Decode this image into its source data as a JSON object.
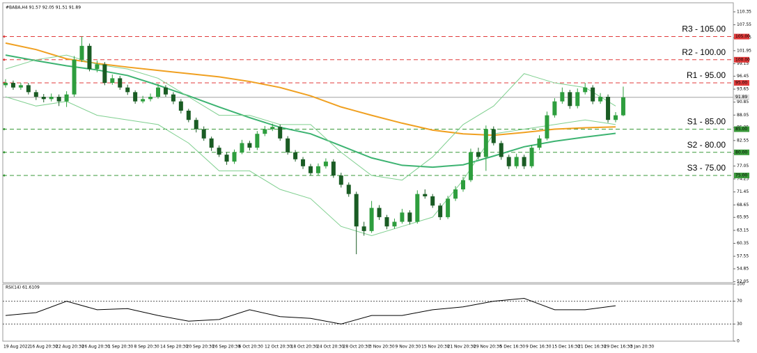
{
  "chart_data": {
    "type": "candlestick",
    "title": "#BABA,H4 91.57 92.05 91.51 91.89",
    "bull_color": "#2e9e3e",
    "bear_color": "#1a5c24",
    "ylim": [
      52,
      111.7
    ],
    "yticks": [
      110.35,
      107.55,
      104.75,
      101.95,
      99.15,
      96.45,
      93.65,
      90.85,
      88.05,
      85.35,
      82.55,
      79.75,
      77.05,
      74.25,
      71.45,
      68.65,
      65.95,
      63.15,
      60.35,
      57.55,
      54.85,
      52.05
    ],
    "candles": [
      [
        94.5,
        95.8,
        94,
        95
      ],
      [
        95,
        95.5,
        93.5,
        94
      ],
      [
        94,
        95,
        93.5,
        94.5
      ],
      [
        94.5,
        95,
        92.5,
        93
      ],
      [
        93,
        93.5,
        91.3,
        92
      ],
      [
        92,
        92.6,
        90.8,
        91.5
      ],
      [
        91.5,
        92.7,
        91,
        92
      ],
      [
        92,
        92.5,
        90,
        91
      ],
      [
        91,
        93.2,
        89.8,
        92.5
      ],
      [
        92.5,
        100.8,
        92,
        100
      ],
      [
        100,
        105,
        99.5,
        103
      ],
      [
        103,
        103.5,
        97.5,
        98
      ],
      [
        98,
        99.8,
        97.3,
        99
      ],
      [
        99,
        99.5,
        94.5,
        95
      ],
      [
        95,
        96.8,
        94.6,
        96
      ],
      [
        96,
        96.5,
        93.5,
        94
      ],
      [
        94,
        94.6,
        92.4,
        93
      ],
      [
        93,
        93.4,
        90.5,
        91
      ],
      [
        91,
        92.2,
        90.6,
        91.5
      ],
      [
        91.5,
        92.7,
        91,
        92
      ],
      [
        92,
        94.8,
        91.6,
        94
      ],
      [
        94,
        94.5,
        92,
        92.5
      ],
      [
        92.5,
        93,
        90.4,
        91
      ],
      [
        91,
        91.5,
        88.4,
        89
      ],
      [
        89,
        89.4,
        86.5,
        87
      ],
      [
        87,
        87.5,
        84.3,
        85
      ],
      [
        85,
        85.6,
        82.5,
        83
      ],
      [
        83,
        83.4,
        80.3,
        81
      ],
      [
        81,
        81.5,
        79,
        79.5
      ],
      [
        79.5,
        80,
        77.3,
        78
      ],
      [
        78,
        80.6,
        77.5,
        80
      ],
      [
        80,
        82.7,
        79.6,
        82
      ],
      [
        82,
        82.5,
        80.4,
        81
      ],
      [
        81,
        84.6,
        80.5,
        84
      ],
      [
        84,
        85.7,
        83.5,
        85
      ],
      [
        85,
        86.2,
        84.6,
        85.5
      ],
      [
        85.5,
        86,
        82.5,
        83
      ],
      [
        83,
        83.5,
        79.5,
        80
      ],
      [
        80,
        80.5,
        78,
        78.5
      ],
      [
        78.5,
        79,
        76.4,
        77
      ],
      [
        77,
        77.5,
        75,
        75.5
      ],
      [
        75.5,
        77.6,
        75,
        77
      ],
      [
        77,
        78.7,
        76.5,
        78
      ],
      [
        78,
        78.5,
        74.5,
        75
      ],
      [
        75,
        75.6,
        72.4,
        73
      ],
      [
        73,
        73.5,
        70.4,
        71
      ],
      [
        71,
        71.5,
        58,
        64
      ],
      [
        64,
        65,
        62,
        63
      ],
      [
        63,
        69.5,
        62.6,
        68
      ],
      [
        68,
        68.6,
        65.4,
        66
      ],
      [
        66,
        66.5,
        63.4,
        64
      ],
      [
        64,
        65.7,
        63.5,
        65
      ],
      [
        65,
        67.8,
        64.6,
        67
      ],
      [
        67,
        67.5,
        64.4,
        65
      ],
      [
        65,
        71.8,
        64.6,
        71
      ],
      [
        71,
        72,
        70,
        70.5
      ],
      [
        70.5,
        71,
        68,
        68.5
      ],
      [
        68.5,
        69,
        65.4,
        66
      ],
      [
        66,
        70.6,
        65.6,
        70
      ],
      [
        70,
        72.7,
        69.5,
        72
      ],
      [
        72,
        74.7,
        71.5,
        74
      ],
      [
        74,
        80.8,
        73.6,
        80
      ],
      [
        80,
        81,
        78.5,
        79
      ],
      [
        79,
        85.8,
        76,
        85
      ],
      [
        85,
        85.6,
        81.5,
        82
      ],
      [
        82,
        82.5,
        78.4,
        79
      ],
      [
        79,
        79.5,
        76.4,
        77
      ],
      [
        77,
        79.7,
        76.5,
        79
      ],
      [
        79,
        79.5,
        76.4,
        77
      ],
      [
        77,
        81.6,
        76.6,
        81
      ],
      [
        81,
        83.7,
        80.5,
        83
      ],
      [
        83,
        88.8,
        82.6,
        88
      ],
      [
        88,
        91.7,
        87.5,
        91
      ],
      [
        91,
        94,
        90.5,
        93
      ],
      [
        93,
        93.5,
        89.4,
        90
      ],
      [
        90,
        93.8,
        89.5,
        93
      ],
      [
        93,
        95,
        92.5,
        94
      ],
      [
        94,
        94.5,
        90.4,
        91
      ],
      [
        91,
        92.8,
        90.5,
        92
      ],
      [
        92,
        92.5,
        86.4,
        87
      ],
      [
        87,
        88.7,
        86.5,
        88
      ],
      [
        88,
        94.2,
        87.8,
        91.89
      ]
    ],
    "current_price": {
      "value": 91.89,
      "color": "#a0a0a0"
    },
    "levels": [
      {
        "name": "R3 - 105.00",
        "value": 105,
        "label": "105.00",
        "color": "#e03a3a"
      },
      {
        "name": "R2 - 100.00",
        "value": 100,
        "label": "100.00",
        "color": "#e03a3a"
      },
      {
        "name": "R1 - 95.00",
        "value": 95,
        "label": "95.00",
        "color": "#e03a3a"
      },
      {
        "name": "S1 - 85.00",
        "value": 85,
        "label": "85.00",
        "color": "#3a9a3a"
      },
      {
        "name": "S2 - 80.00",
        "value": 80,
        "label": "80.00",
        "color": "#3a9a3a"
      },
      {
        "name": "S3 - 75.00",
        "value": 75,
        "label": "75.00",
        "color": "#3a9a3a"
      }
    ],
    "overlay_x": [
      0,
      4,
      8,
      12,
      16,
      20,
      24,
      28,
      32,
      36,
      40,
      44,
      48,
      52,
      56,
      60,
      64,
      68,
      72,
      76,
      80
    ],
    "overlays": [
      {
        "color": "#f0a020",
        "width": 2,
        "values": [
          103.6,
          102.2,
          100.2,
          99.2,
          98.4,
          97.7,
          97.0,
          96.3,
          95.3,
          94.0,
          92.2,
          89.8,
          88.0,
          86.3,
          84.8,
          84.0,
          83.7,
          84.3,
          85.0,
          85.3,
          85.5
        ]
      },
      {
        "color": "#3cb371",
        "width": 2,
        "values": [
          101.0,
          99.8,
          98.7,
          97.8,
          96.6,
          94.5,
          92.2,
          89.8,
          87.5,
          85.4,
          84.0,
          81.4,
          78.8,
          77.2,
          76.8,
          77.3,
          79.2,
          81.2,
          82.4,
          83.3,
          84.1
        ]
      },
      {
        "color": "#7fcf8f",
        "width": 1,
        "values": [
          98,
          100,
          101,
          99,
          98,
          96,
          92,
          88,
          88,
          86,
          86,
          80,
          75,
          74,
          79,
          86,
          90,
          97,
          95,
          94,
          90
        ]
      },
      {
        "color": "#7fcf8f",
        "width": 1,
        "values": [
          92,
          90,
          91,
          88,
          87,
          86,
          82,
          76,
          76,
          72,
          70,
          64,
          62,
          64,
          66,
          74,
          84,
          85,
          86,
          87,
          86
        ]
      }
    ],
    "x_labels": [
      "19 Aug 2022",
      "16 Aug 20:30",
      "22 Aug 20:30",
      "26 Aug 20:30",
      "1 Sep 20:30",
      "8 Sep 20:30",
      "14 Sep 20:30",
      "20 Sep 20:30",
      "26 Sep 20:30",
      "6 Oct 20:30",
      "12 Oct 20:30",
      "18 Oct 20:30",
      "24 Oct 20:30",
      "28 Oct 20:30",
      "3 Nov 20:30",
      "9 Nov 20:30",
      "15 Nov 20:30",
      "21 Nov 20:30",
      "29 Nov 20:30",
      "5 Dec 16:30",
      "9 Dec 16:30",
      "15 Dec 16:30",
      "21 Dec 16:30",
      "29 Dec 16:30",
      "3 Jan 20:30"
    ],
    "rsi": {
      "title": "RSI(14) 61.6109",
      "color": "#000000",
      "ylim": [
        0,
        100
      ],
      "yticks": [
        100,
        70,
        30,
        0
      ],
      "values": [
        45,
        50,
        70,
        55,
        57,
        45,
        35,
        38,
        55,
        43,
        40,
        30,
        45,
        45,
        55,
        60,
        70,
        75,
        55,
        55,
        62
      ]
    }
  }
}
